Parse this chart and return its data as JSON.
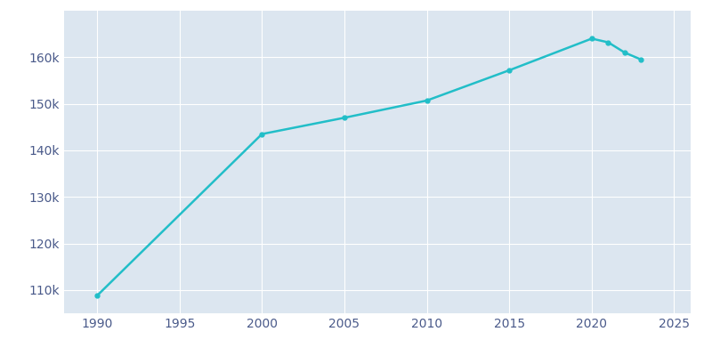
{
  "years": [
    1990,
    2000,
    2005,
    2010,
    2015,
    2020,
    2021,
    2022,
    2023
  ],
  "population": [
    108777,
    143500,
    147000,
    150700,
    157200,
    164000,
    163200,
    161000,
    159500
  ],
  "line_color": "#22bec8",
  "marker": "o",
  "marker_size": 3.5,
  "linewidth": 1.8,
  "plot_bg_color": "#dce6f0",
  "fig_bg_color": "#ffffff",
  "grid_color": "#ffffff",
  "tick_color": "#4a5a8a",
  "xlim": [
    1988,
    2026
  ],
  "ylim": [
    105000,
    170000
  ],
  "xticks": [
    1990,
    1995,
    2000,
    2005,
    2010,
    2015,
    2020,
    2025
  ],
  "ytick_values": [
    110000,
    120000,
    130000,
    140000,
    150000,
    160000
  ]
}
